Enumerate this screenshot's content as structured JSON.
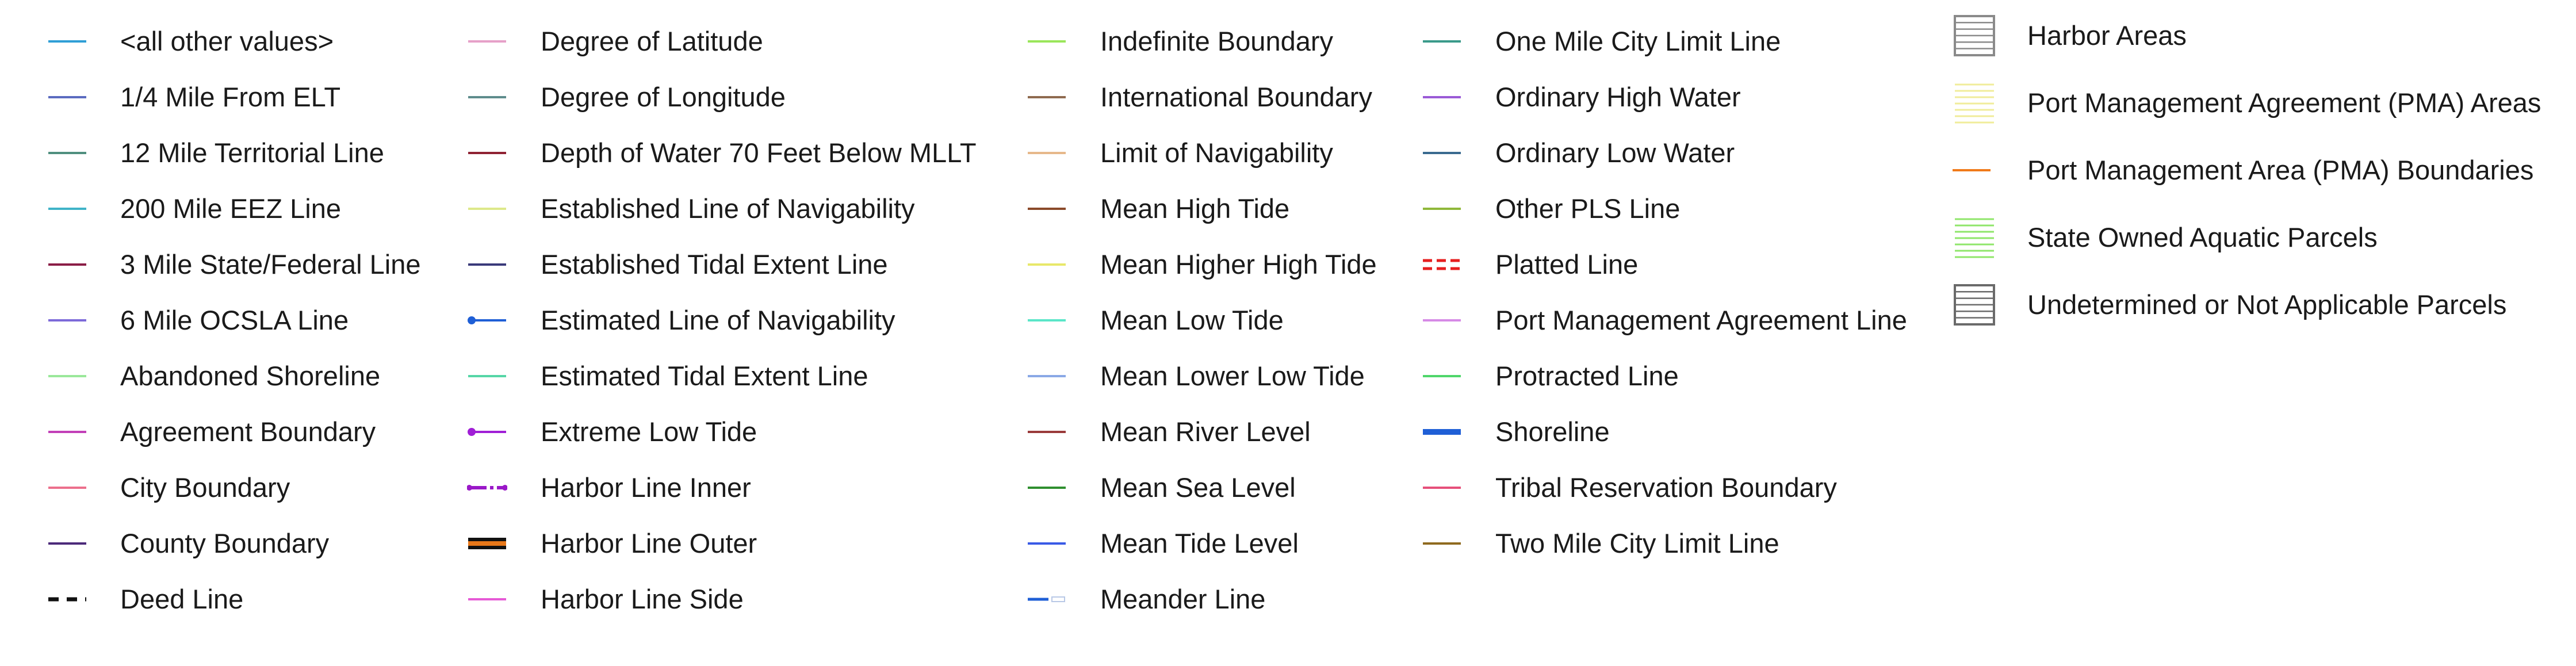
{
  "legend": {
    "columns": [
      {
        "items": [
          {
            "label": "<all other values>",
            "color": "#2f9fd6",
            "icon": "solid-line-icon"
          },
          {
            "label": "1/4 Mile From ELT",
            "color": "#5b6bc0",
            "icon": "solid-line-icon"
          },
          {
            "label": "12 Mile Territorial Line",
            "color": "#4f8f7f",
            "icon": "solid-line-icon"
          },
          {
            "label": "200 Mile EEZ Line",
            "color": "#3fb3c8",
            "icon": "solid-line-icon"
          },
          {
            "label": "3 Mile State/Federal Line",
            "color": "#8a1d46",
            "icon": "solid-line-icon"
          },
          {
            "label": "6 Mile OCSLA Line",
            "color": "#7d6ad9",
            "icon": "solid-line-icon"
          },
          {
            "label": "Abandoned Shoreline",
            "color": "#9ae89a",
            "icon": "solid-line-icon"
          },
          {
            "label": "Agreement Boundary",
            "color": "#c23fb8",
            "icon": "solid-line-icon"
          },
          {
            "label": "City Boundary",
            "color": "#ec6f8c",
            "icon": "solid-line-icon"
          },
          {
            "label": "County Boundary",
            "color": "#4b2a7a",
            "icon": "solid-line-icon"
          },
          {
            "label": "Deed Line",
            "color": "#111111",
            "icon": "dashed-line-icon"
          }
        ]
      },
      {
        "items": [
          {
            "label": "Degree of Latitude",
            "color": "#e6a0c8",
            "icon": "solid-line-icon"
          },
          {
            "label": "Degree of Longitude",
            "color": "#5e8c8c",
            "icon": "solid-line-icon"
          },
          {
            "label": "Depth of Water 70 Feet Below MLLT",
            "color": "#8f2233",
            "icon": "solid-line-icon"
          },
          {
            "label": "Established Line of Navigability",
            "color": "#dde88a",
            "icon": "solid-line-icon"
          },
          {
            "label": "Established Tidal Extent Line",
            "color": "#3a3a7a",
            "icon": "solid-line-icon"
          },
          {
            "label": "Estimated Line of Navigability",
            "color": "#1f5fd6",
            "icon": "dot-line-icon"
          },
          {
            "label": "Estimated Tidal Extent Line",
            "color": "#55d6a6",
            "icon": "solid-line-icon"
          },
          {
            "label": "Extreme Low Tide",
            "color": "#a01fd6",
            "icon": "dot-line-icon"
          },
          {
            "label": "Harbor Line Inner",
            "color": "#9a18c8",
            "icon": "dash-dot-line-icon"
          },
          {
            "label": "Harbor Line Outer",
            "color": "#e8781a",
            "icon": "double-line-icon"
          },
          {
            "label": "Harbor Line Side",
            "color": "#e65ad6",
            "icon": "solid-line-icon"
          }
        ]
      },
      {
        "items": [
          {
            "label": "Indefinite Boundary",
            "color": "#9ae65a",
            "icon": "solid-line-icon"
          },
          {
            "label": "International Boundary",
            "color": "#8f6a4f",
            "icon": "solid-line-icon"
          },
          {
            "label": "Limit of Navigability",
            "color": "#e6b88a",
            "icon": "solid-line-icon"
          },
          {
            "label": "Mean High Tide",
            "color": "#8a4a2a",
            "icon": "solid-line-icon"
          },
          {
            "label": "Mean Higher High Tide",
            "color": "#e8e86a",
            "icon": "solid-line-icon"
          },
          {
            "label": "Mean Low Tide",
            "color": "#5ae6c8",
            "icon": "solid-line-icon"
          },
          {
            "label": "Mean Lower Low Tide",
            "color": "#8aa8e6",
            "icon": "solid-line-icon"
          },
          {
            "label": "Mean River Level",
            "color": "#9a3a3a",
            "icon": "solid-line-icon"
          },
          {
            "label": "Mean Sea Level",
            "color": "#2f8f2f",
            "icon": "solid-line-icon"
          },
          {
            "label": "Mean Tide Level",
            "color": "#3a5ae6",
            "icon": "solid-line-icon"
          },
          {
            "label": "Meander Line",
            "color": "#1f5fd6",
            "icon": "meander-line-icon"
          }
        ]
      },
      {
        "items": [
          {
            "label": "One Mile City Limit Line",
            "color": "#3a9a8a",
            "icon": "solid-line-icon"
          },
          {
            "label": "Ordinary High Water",
            "color": "#9a5ad6",
            "icon": "solid-line-icon"
          },
          {
            "label": "Ordinary Low Water",
            "color": "#3a6a8f",
            "icon": "solid-line-icon"
          },
          {
            "label": "Other PLS Line",
            "color": "#8fb83a",
            "icon": "solid-line-icon"
          },
          {
            "label": "Platted Line",
            "color": "#e61f1f",
            "icon": "triple-dash-icon"
          },
          {
            "label": "Port Management Agreement Line",
            "color": "#d68ae6",
            "icon": "solid-line-icon"
          },
          {
            "label": "Protracted Line",
            "color": "#4fd66a",
            "icon": "solid-line-icon"
          },
          {
            "label": "Shoreline",
            "color": "#1f5fd6",
            "icon": "thick-line-icon"
          },
          {
            "label": "Tribal Reservation Boundary",
            "color": "#e64f7a",
            "icon": "solid-line-icon"
          },
          {
            "label": "Two Mile City Limit Line",
            "color": "#8f6a1f",
            "icon": "solid-line-icon"
          }
        ]
      },
      {
        "items": [
          {
            "label": "Harbor Areas",
            "color": "#8a8a8a",
            "icon": "hatched-box-icon"
          },
          {
            "label": "Port Management Agreement (PMA) Areas",
            "color": "#f0ec9a",
            "icon": "hatched-lines-icon"
          },
          {
            "label": "Port Management Area (PMA) Boundaries",
            "color": "#f07a1a",
            "icon": "solid-line-icon"
          },
          {
            "label": "State Owned Aquatic Parcels",
            "color": "#8fe66a",
            "icon": "hatched-lines-icon"
          },
          {
            "label": "Undetermined or Not Applicable Parcels",
            "color": "#6a6a6a",
            "icon": "hatched-box-icon"
          }
        ]
      }
    ]
  }
}
